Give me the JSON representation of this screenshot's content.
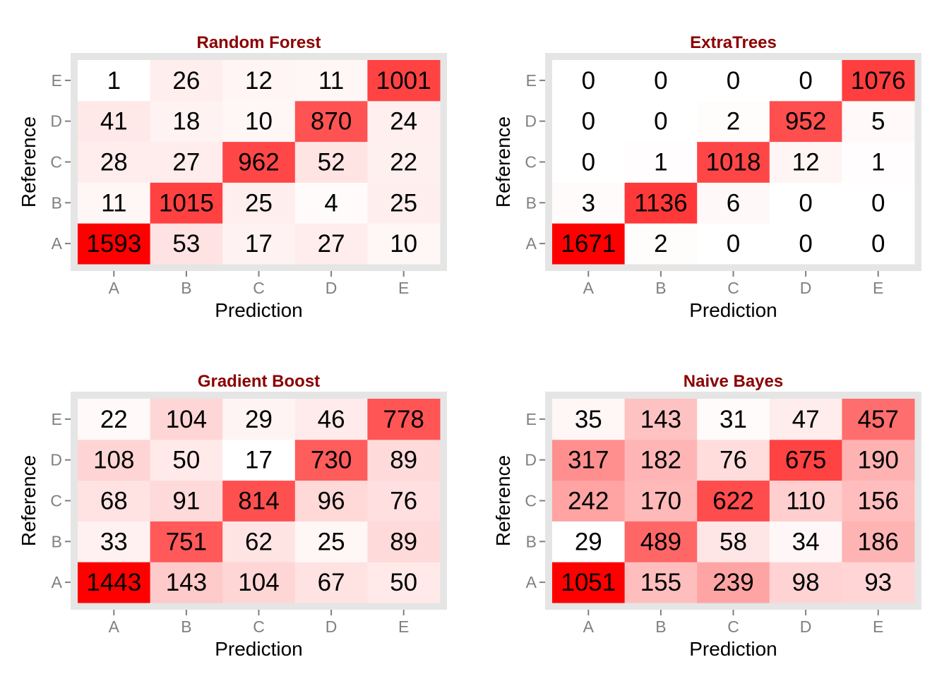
{
  "colors": {
    "low": "#ffffff",
    "high": "#ff0000",
    "title": "#8b0000",
    "panel_border": "#e5e5e5",
    "tick_label": "#7f7f7f"
  },
  "chart_data": [
    {
      "type": "heatmap",
      "title": "Random Forest",
      "xlabel": "Prediction",
      "ylabel": "Reference",
      "x_categories": [
        "A",
        "B",
        "C",
        "D",
        "E"
      ],
      "y_categories": [
        "A",
        "B",
        "C",
        "D",
        "E"
      ],
      "values": [
        [
          1593,
          53,
          17,
          27,
          10
        ],
        [
          11,
          1015,
          25,
          4,
          25
        ],
        [
          28,
          27,
          962,
          52,
          22
        ],
        [
          41,
          18,
          10,
          870,
          24
        ],
        [
          1,
          26,
          12,
          11,
          1001
        ]
      ]
    },
    {
      "type": "heatmap",
      "title": "ExtraTrees",
      "xlabel": "Prediction",
      "ylabel": "Reference",
      "x_categories": [
        "A",
        "B",
        "C",
        "D",
        "E"
      ],
      "y_categories": [
        "A",
        "B",
        "C",
        "D",
        "E"
      ],
      "values": [
        [
          1671,
          2,
          0,
          0,
          0
        ],
        [
          3,
          1136,
          6,
          0,
          0
        ],
        [
          0,
          1,
          1018,
          12,
          1
        ],
        [
          0,
          0,
          2,
          952,
          5
        ],
        [
          0,
          0,
          0,
          0,
          1076
        ]
      ]
    },
    {
      "type": "heatmap",
      "title": "Gradient Boost",
      "xlabel": "Prediction",
      "ylabel": "Reference",
      "x_categories": [
        "A",
        "B",
        "C",
        "D",
        "E"
      ],
      "y_categories": [
        "A",
        "B",
        "C",
        "D",
        "E"
      ],
      "values": [
        [
          1443,
          143,
          104,
          67,
          50
        ],
        [
          33,
          751,
          62,
          25,
          89
        ],
        [
          68,
          91,
          814,
          96,
          76
        ],
        [
          108,
          50,
          17,
          730,
          89
        ],
        [
          22,
          104,
          29,
          46,
          778
        ]
      ]
    },
    {
      "type": "heatmap",
      "title": "Naive Bayes",
      "xlabel": "Prediction",
      "ylabel": "Reference",
      "x_categories": [
        "A",
        "B",
        "C",
        "D",
        "E"
      ],
      "y_categories": [
        "A",
        "B",
        "C",
        "D",
        "E"
      ],
      "values": [
        [
          1051,
          155,
          239,
          98,
          93
        ],
        [
          29,
          489,
          58,
          34,
          186
        ],
        [
          242,
          170,
          622,
          110,
          156
        ],
        [
          317,
          182,
          76,
          675,
          190
        ],
        [
          35,
          143,
          31,
          47,
          457
        ]
      ]
    }
  ]
}
